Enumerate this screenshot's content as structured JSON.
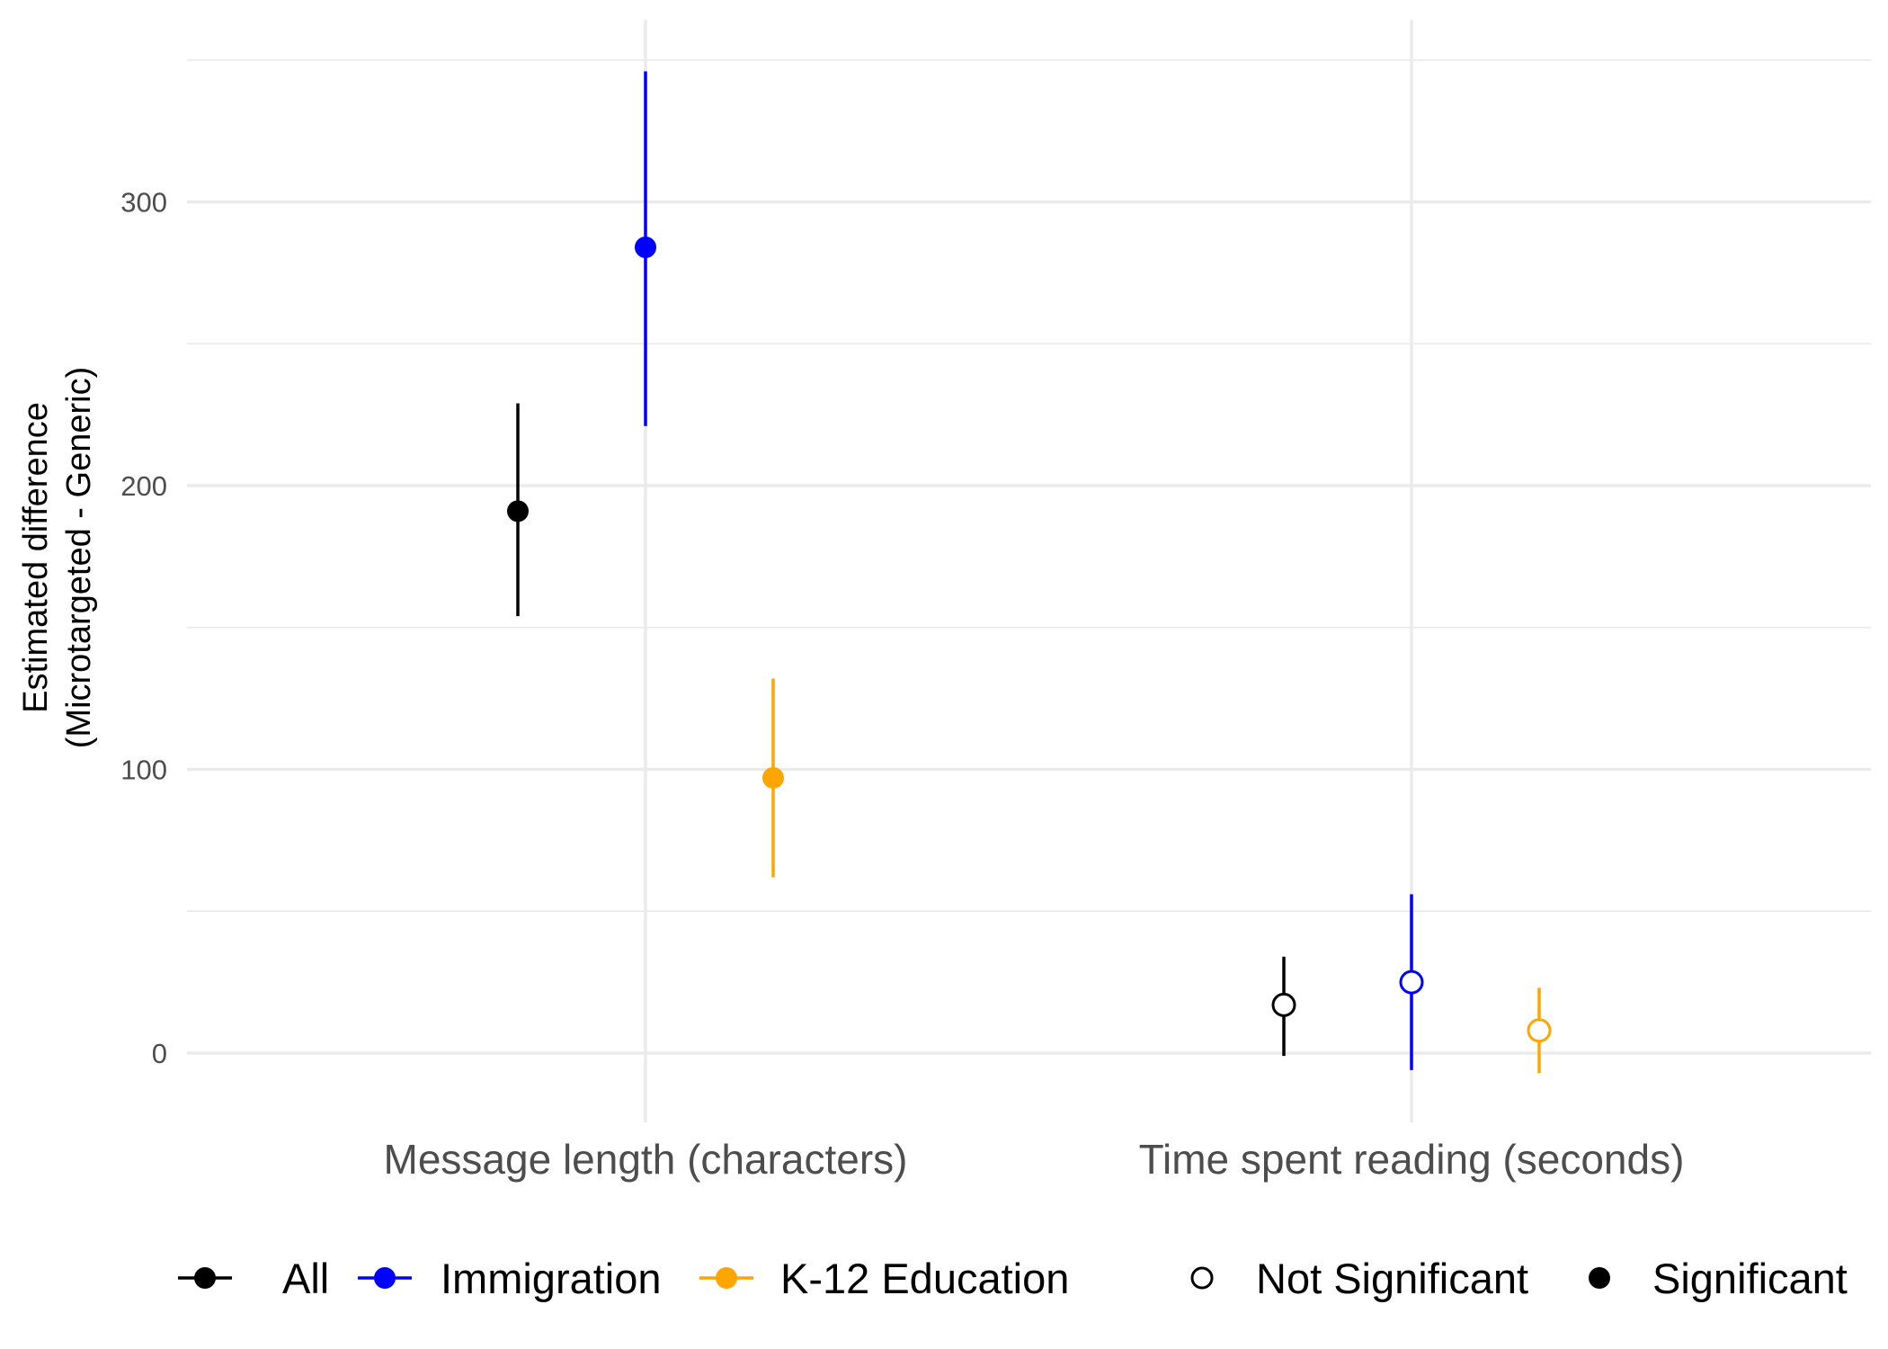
{
  "chart_data": {
    "type": "scatter",
    "subtype": "pointrange",
    "title": "",
    "xlabel": "",
    "ylabel": [
      "Estimated difference",
      "(Microtargeted - Generic)"
    ],
    "categories": [
      "Message length (characters)",
      "Time spent reading (seconds)"
    ],
    "ylim": [
      -25,
      365
    ],
    "yticks": [
      0,
      100,
      200,
      300
    ],
    "ytick_labels": [
      "0",
      "100",
      "200",
      "300"
    ],
    "grid": true,
    "legend_position": "bottom",
    "series": [
      {
        "name": "All",
        "color": "#000000",
        "points": [
          {
            "category": "Message length (characters)",
            "estimate": 191,
            "lower": 154,
            "upper": 229,
            "significant": true
          },
          {
            "category": "Time spent reading (seconds)",
            "estimate": 17,
            "lower": -1,
            "upper": 34,
            "significant": false
          }
        ]
      },
      {
        "name": "Immigration",
        "color": "#0000FF",
        "points": [
          {
            "category": "Message length (characters)",
            "estimate": 284,
            "lower": 221,
            "upper": 346,
            "significant": true
          },
          {
            "category": "Time spent reading (seconds)",
            "estimate": 25,
            "lower": -6,
            "upper": 56,
            "significant": false
          }
        ]
      },
      {
        "name": "K-12 Education",
        "color": "#FFA500",
        "points": [
          {
            "category": "Message length (characters)",
            "estimate": 97,
            "lower": 62,
            "upper": 132,
            "significant": true
          },
          {
            "category": "Time spent reading (seconds)",
            "estimate": 8,
            "lower": -7,
            "upper": 23,
            "significant": false
          }
        ]
      }
    ],
    "shape_legend": [
      "Not Significant",
      "Significant"
    ]
  }
}
